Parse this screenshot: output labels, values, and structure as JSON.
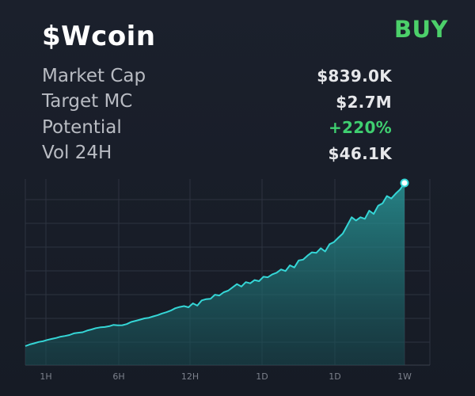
{
  "header": {
    "title": "$Wcoin",
    "action_label": "BUY"
  },
  "stats": [
    {
      "label": "Market Cap",
      "value": "$839.0K",
      "positive": false
    },
    {
      "label": "Target MC",
      "value": "$2.7M",
      "positive": false
    },
    {
      "label": "Potential",
      "value": "+220%",
      "positive": true
    },
    {
      "label": "Vol 24H",
      "value": "$46.1K",
      "positive": false
    }
  ],
  "colors": {
    "background": "#171c27",
    "line": "#35d6d6",
    "fill": "#1f8d8d",
    "positive": "#3fcf70",
    "buy": "#4cd06a",
    "grid": "#2d3340"
  },
  "chart_data": {
    "type": "area",
    "x_ticks": [
      "1H",
      "6H",
      "12H",
      "1D",
      "1D",
      "1W"
    ],
    "grid": true,
    "values": [
      0.0,
      0.01,
      0.017,
      0.025,
      0.03,
      0.038,
      0.044,
      0.05,
      0.058,
      0.062,
      0.068,
      0.078,
      0.082,
      0.085,
      0.095,
      0.102,
      0.11,
      0.115,
      0.117,
      0.122,
      0.13,
      0.127,
      0.128,
      0.135,
      0.148,
      0.155,
      0.162,
      0.17,
      0.174,
      0.182,
      0.19,
      0.2,
      0.208,
      0.218,
      0.232,
      0.24,
      0.245,
      0.238,
      0.262,
      0.248,
      0.28,
      0.288,
      0.29,
      0.315,
      0.31,
      0.33,
      0.34,
      0.36,
      0.38,
      0.365,
      0.392,
      0.385,
      0.405,
      0.398,
      0.425,
      0.422,
      0.44,
      0.45,
      0.47,
      0.46,
      0.495,
      0.482,
      0.525,
      0.53,
      0.555,
      0.575,
      0.572,
      0.6,
      0.58,
      0.625,
      0.638,
      0.665,
      0.69,
      0.74,
      0.79,
      0.77,
      0.79,
      0.78,
      0.83,
      0.81,
      0.86,
      0.875,
      0.92,
      0.905,
      0.935,
      0.96,
      1.0
    ]
  }
}
